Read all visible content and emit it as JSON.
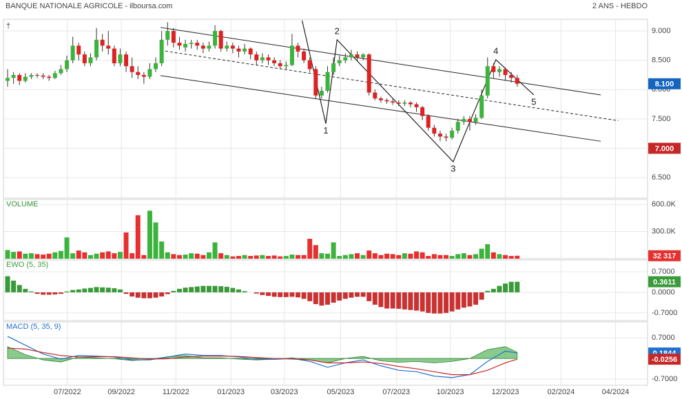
{
  "chart_data": [
    {
      "type": "candlestick",
      "title": "BANQUE NATIONALE AGRICOLE - ilboursa.com",
      "subtitle": "2 ANS - HEBDO",
      "symbol": "†",
      "title_color": "#555555",
      "up_color": "#3cb33c",
      "down_color": "#dd2222",
      "candles": [
        [
          8.15,
          8.35,
          8.05,
          8.2
        ],
        [
          8.2,
          8.3,
          8.1,
          8.25
        ],
        [
          8.25,
          8.28,
          8.08,
          8.15
        ],
        [
          8.15,
          8.28,
          8.12,
          8.22
        ],
        [
          8.22,
          8.28,
          8.18,
          8.25
        ],
        [
          8.25,
          8.28,
          8.2,
          8.24
        ],
        [
          8.24,
          8.28,
          8.18,
          8.22
        ],
        [
          8.22,
          8.25,
          8.15,
          8.2
        ],
        [
          8.2,
          8.32,
          8.18,
          8.28
        ],
        [
          8.28,
          8.42,
          8.25,
          8.35
        ],
        [
          8.35,
          8.58,
          8.3,
          8.5
        ],
        [
          8.5,
          8.9,
          8.45,
          8.75
        ],
        [
          8.75,
          8.8,
          8.5,
          8.6
        ],
        [
          8.6,
          8.65,
          8.4,
          8.45
        ],
        [
          8.45,
          8.62,
          8.4,
          8.55
        ],
        [
          8.55,
          9.05,
          8.5,
          8.85
        ],
        [
          8.85,
          8.95,
          8.65,
          8.75
        ],
        [
          8.75,
          9.0,
          8.6,
          8.7
        ],
        [
          8.7,
          8.75,
          8.4,
          8.45
        ],
        [
          8.45,
          8.7,
          8.4,
          8.6
        ],
        [
          8.6,
          8.65,
          8.3,
          8.4
        ],
        [
          8.4,
          8.55,
          8.2,
          8.3
        ],
        [
          8.3,
          8.4,
          8.18,
          8.25
        ],
        [
          8.25,
          8.3,
          8.1,
          8.22
        ],
        [
          8.22,
          8.45,
          8.18,
          8.35
        ],
        [
          8.35,
          8.55,
          8.3,
          8.45
        ],
        [
          8.45,
          9.0,
          8.4,
          8.85
        ],
        [
          8.85,
          9.15,
          8.75,
          9.0
        ],
        [
          9.0,
          9.05,
          8.72,
          8.8
        ],
        [
          8.8,
          8.9,
          8.68,
          8.75
        ],
        [
          8.72,
          8.85,
          8.65,
          8.78
        ],
        [
          8.78,
          8.85,
          8.7,
          8.8
        ],
        [
          8.8,
          8.85,
          8.68,
          8.75
        ],
        [
          8.75,
          8.8,
          8.62,
          8.7
        ],
        [
          8.7,
          8.82,
          8.65,
          8.75
        ],
        [
          8.75,
          9.1,
          8.7,
          9.0
        ],
        [
          9.0,
          9.02,
          8.65,
          8.7
        ],
        [
          8.7,
          8.82,
          8.65,
          8.75
        ],
        [
          8.75,
          8.8,
          8.62,
          8.7
        ],
        [
          8.7,
          8.75,
          8.55,
          8.65
        ],
        [
          8.65,
          8.78,
          8.6,
          8.7
        ],
        [
          8.7,
          8.72,
          8.52,
          8.6
        ],
        [
          8.6,
          8.65,
          8.42,
          8.5
        ],
        [
          8.5,
          8.62,
          8.45,
          8.55
        ],
        [
          8.55,
          8.6,
          8.42,
          8.5
        ],
        [
          8.5,
          8.55,
          8.4,
          8.45
        ],
        [
          8.45,
          8.5,
          8.35,
          8.4
        ],
        [
          8.4,
          8.48,
          8.35,
          8.42
        ],
        [
          8.42,
          8.95,
          8.4,
          8.75
        ],
        [
          8.75,
          8.8,
          8.55,
          8.65
        ],
        [
          8.65,
          8.7,
          8.45,
          8.5
        ],
        [
          8.5,
          8.55,
          8.3,
          8.35
        ],
        [
          8.35,
          8.4,
          7.85,
          7.9
        ],
        [
          7.9,
          8.05,
          7.85,
          7.98
        ],
        [
          7.98,
          8.4,
          7.95,
          8.3
        ],
        [
          8.3,
          8.55,
          8.25,
          8.45
        ],
        [
          8.45,
          8.58,
          8.4,
          8.5
        ],
        [
          8.5,
          8.62,
          8.45,
          8.55
        ],
        [
          8.55,
          8.68,
          8.5,
          8.6
        ],
        [
          8.6,
          8.65,
          8.5,
          8.55
        ],
        [
          8.55,
          8.62,
          8.5,
          8.6
        ],
        [
          8.6,
          8.62,
          7.9,
          7.95
        ],
        [
          7.95,
          8.0,
          7.82,
          7.85
        ],
        [
          7.85,
          7.88,
          7.78,
          7.82
        ],
        [
          7.82,
          7.85,
          7.76,
          7.8
        ],
        [
          7.8,
          7.84,
          7.74,
          7.78
        ],
        [
          7.78,
          7.82,
          7.72,
          7.76
        ],
        [
          7.76,
          7.82,
          7.72,
          7.78
        ],
        [
          7.78,
          7.8,
          7.7,
          7.75
        ],
        [
          7.75,
          7.78,
          7.62,
          7.7
        ],
        [
          7.7,
          7.72,
          7.48,
          7.55
        ],
        [
          7.55,
          7.58,
          7.3,
          7.35
        ],
        [
          7.35,
          7.4,
          7.2,
          7.25
        ],
        [
          7.25,
          7.3,
          7.12,
          7.2
        ],
        [
          7.2,
          7.25,
          7.12,
          7.18
        ],
        [
          7.18,
          7.35,
          7.15,
          7.3
        ],
        [
          7.3,
          7.5,
          7.25,
          7.45
        ],
        [
          7.45,
          7.55,
          7.4,
          7.5
        ],
        [
          7.5,
          7.55,
          7.3,
          7.45
        ],
        [
          7.45,
          7.58,
          7.4,
          7.52
        ],
        [
          7.52,
          8.0,
          7.5,
          7.9
        ],
        [
          7.9,
          8.55,
          7.85,
          8.4
        ],
        [
          8.4,
          8.45,
          8.2,
          8.3
        ],
        [
          8.3,
          8.4,
          8.22,
          8.35
        ],
        [
          8.35,
          8.38,
          8.15,
          8.25
        ],
        [
          8.25,
          8.3,
          8.12,
          8.2
        ],
        [
          8.2,
          8.25,
          8.05,
          8.1
        ]
      ],
      "ylim": [
        6.15,
        9.2
      ],
      "yticks": [
        {
          "value": 6.5,
          "label": "6.500"
        },
        {
          "value": 7,
          "label": "7.000"
        },
        {
          "value": 7.5,
          "label": "7.500"
        },
        {
          "value": 8,
          "label": "8.000"
        },
        {
          "value": 8.5,
          "label": "8.500"
        },
        {
          "value": 9,
          "label": "9.000"
        }
      ],
      "xlim": [
        -0.7,
        108
      ],
      "xticks": [
        {
          "value": 10.1,
          "label": "07/2022"
        },
        {
          "value": 19.2,
          "label": "09/2022"
        },
        {
          "value": 28.4,
          "label": "11/2022"
        },
        {
          "value": 37.7,
          "label": "01/2023"
        },
        {
          "value": 46.7,
          "label": "03/2023"
        },
        {
          "value": 56.2,
          "label": "05/2023"
        },
        {
          "value": 65.6,
          "label": "07/2023"
        },
        {
          "value": 74.7,
          "label": "10/2023"
        },
        {
          "value": 84.0,
          "label": "12/2023"
        },
        {
          "value": 93.4,
          "label": "02/2024"
        },
        {
          "value": 102.6,
          "label": "04/2024"
        }
      ],
      "grid": true,
      "last_close_label": "8.100",
      "last_close_color": "#1565c0",
      "level": {
        "value": 7.0,
        "label": "7.000",
        "color": "#c62828"
      },
      "line_color": "#222222",
      "channel": [
        {
          "points": [
            [
              25.8,
              9.06
            ],
            [
              100.1,
              7.91
            ]
          ],
          "dashed": false
        },
        {
          "points": [
            [
              25.8,
              8.67
            ],
            [
              103.1,
              7.47
            ]
          ],
          "dashed": true
        },
        {
          "points": [
            [
              25.8,
              8.24
            ],
            [
              100.1,
              7.12
            ]
          ],
          "dashed": false
        }
      ],
      "waves": {
        "points": [
          [
            49.7,
            9.18
          ],
          [
            53.7,
            7.42
          ],
          [
            55.6,
            8.85
          ],
          [
            75.2,
            6.77
          ],
          [
            82.4,
            8.51
          ],
          [
            88.8,
            7.91
          ]
        ],
        "labels": [
          "1",
          "2",
          "3",
          "4",
          "5"
        ]
      }
    },
    {
      "type": "bar",
      "title": "VOLUME",
      "title_color": "#3a9a3a",
      "direction": "candles",
      "up_color": "#3cb33c",
      "down_color": "#e63030",
      "values": [
        95000,
        75000,
        80000,
        55000,
        60000,
        50000,
        45000,
        55000,
        70000,
        85000,
        235000,
        60000,
        90000,
        70000,
        40000,
        55000,
        70000,
        80000,
        60000,
        75000,
        290000,
        60000,
        480000,
        40000,
        530000,
        400000,
        190000,
        70000,
        50000,
        40000,
        45000,
        60000,
        55000,
        40000,
        70000,
        180000,
        60000,
        40000,
        25000,
        30000,
        40000,
        30000,
        35000,
        40000,
        30000,
        35000,
        25000,
        30000,
        45000,
        40000,
        40000,
        220000,
        150000,
        60000,
        55000,
        180000,
        30000,
        40000,
        50000,
        60000,
        40000,
        90000,
        60000,
        40000,
        55000,
        50000,
        40000,
        60000,
        55000,
        80000,
        70000,
        30000,
        50000,
        40000,
        40000,
        30000,
        50000,
        60000,
        40000,
        50000,
        110000,
        160000,
        70000,
        50000,
        40000,
        30000,
        32317
      ],
      "last_value_label": "32 317",
      "ylim": [
        0,
        654000
      ],
      "yticks": [
        {
          "value": 300000,
          "label": "300.0K"
        },
        {
          "value": 600000,
          "label": "600.0K"
        }
      ]
    },
    {
      "type": "bar",
      "title": "EWO (5, 35)",
      "title_color": "#3a9a3a",
      "direction": "sign",
      "up_color": "#3a9a3a",
      "down_color": "#c83232",
      "values": [
        0.55,
        0.4,
        0.25,
        0.12,
        0.03,
        -0.05,
        -0.08,
        -0.08,
        -0.07,
        -0.05,
        0.03,
        0.08,
        0.1,
        0.13,
        0.15,
        0.18,
        0.17,
        0.16,
        0.14,
        0.1,
        -0.05,
        -0.14,
        -0.18,
        -0.2,
        -0.2,
        -0.18,
        -0.14,
        -0.06,
        0.05,
        0.12,
        0.16,
        0.18,
        0.2,
        0.22,
        0.22,
        0.22,
        0.21,
        0.19,
        0.15,
        0.1,
        0.04,
        0.0,
        -0.04,
        -0.09,
        -0.12,
        -0.15,
        -0.16,
        -0.16,
        -0.15,
        -0.17,
        -0.22,
        -0.3,
        -0.4,
        -0.45,
        -0.42,
        -0.35,
        -0.28,
        -0.22,
        -0.18,
        -0.15,
        -0.15,
        -0.3,
        -0.42,
        -0.5,
        -0.55,
        -0.55,
        -0.56,
        -0.58,
        -0.6,
        -0.62,
        -0.65,
        -0.7,
        -0.72,
        -0.72,
        -0.7,
        -0.65,
        -0.58,
        -0.52,
        -0.48,
        -0.42,
        -0.25,
        0.05,
        0.12,
        0.22,
        0.3,
        0.36,
        0.3611
      ],
      "ylim": [
        -0.96,
        1.1
      ],
      "yticks": [
        {
          "value": -0.7,
          "label": "-0.7000"
        },
        {
          "value": 0,
          "label": "0.0000"
        },
        {
          "value": 0.7,
          "label": "0.7000"
        }
      ]
    },
    {
      "type": "line",
      "title": "MACD (5, 35, 9)",
      "title_color": "#1f6fd1",
      "x": [
        0,
        3,
        6,
        9,
        12,
        15,
        18,
        21,
        24,
        27,
        30,
        33,
        36,
        39,
        42,
        45,
        48,
        51,
        54,
        57,
        60,
        63,
        66,
        69,
        72,
        75,
        78,
        81,
        84,
        86
      ],
      "series": [
        {
          "style": "area",
          "color": "#4caf50",
          "values": [
            0.4,
            0.13,
            -0.05,
            -0.12,
            0.05,
            0.02,
            -0.01,
            -0.07,
            -0.03,
            0.06,
            0.1,
            0.02,
            0.02,
            -0.02,
            -0.05,
            -0.03,
            0.02,
            -0.05,
            -0.15,
            0.0,
            0.07,
            -0.08,
            -0.13,
            -0.1,
            -0.15,
            -0.1,
            0.0,
            0.3,
            0.4,
            0.21
          ]
        },
        {
          "style": "line",
          "color": "#1f6fd1",
          "values": [
            0.75,
            0.45,
            0.15,
            -0.02,
            0.1,
            0.08,
            0.05,
            -0.05,
            -0.05,
            0.05,
            0.15,
            0.1,
            0.1,
            0.05,
            -0.02,
            -0.03,
            0.0,
            -0.1,
            -0.3,
            -0.15,
            -0.05,
            -0.25,
            -0.4,
            -0.45,
            -0.6,
            -0.65,
            -0.55,
            -0.1,
            0.25,
            0.1844
          ]
        },
        {
          "style": "line",
          "color": "#c62828",
          "values": [
            0.35,
            0.32,
            0.2,
            0.1,
            0.05,
            0.06,
            0.06,
            0.02,
            -0.02,
            -0.01,
            0.05,
            0.08,
            0.08,
            0.07,
            0.03,
            0.0,
            -0.02,
            -0.05,
            -0.15,
            -0.15,
            -0.12,
            -0.17,
            -0.27,
            -0.35,
            -0.45,
            -0.55,
            -0.55,
            -0.4,
            -0.15,
            -0.0256
          ]
        }
      ],
      "ylim": [
        -0.91,
        1.24
      ],
      "yticks": [
        {
          "value": -0.7,
          "label": "-0.7000"
        },
        {
          "value": 0.7,
          "label": "0.7000"
        }
      ]
    }
  ]
}
